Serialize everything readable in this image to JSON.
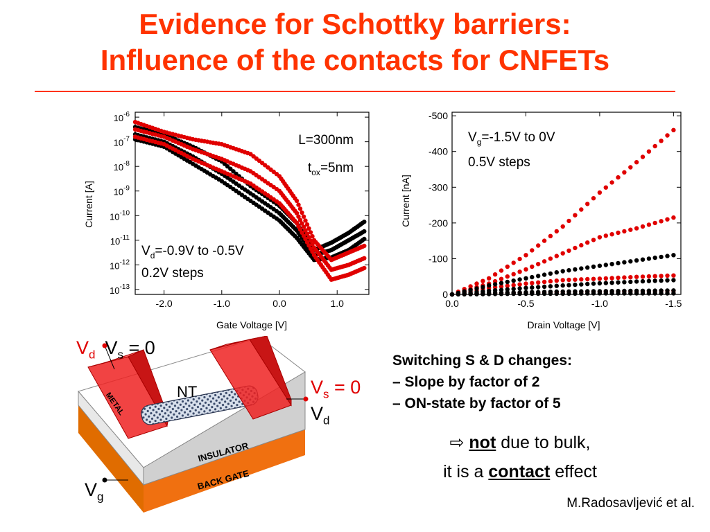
{
  "title": {
    "line1": "Evidence for Schottky barriers:",
    "line2": "Influence of the contacts for CNFETs"
  },
  "chart_data": [
    {
      "type": "scatter",
      "xlabel": "Gate Voltage [V]",
      "ylabel": "Current [A]",
      "xlim": [
        -2.5,
        1.55
      ],
      "ylim_log10": [
        -13.2,
        -5.8
      ],
      "yscale": "log",
      "xticks": [
        "-2.0",
        "-1.0",
        "0.0",
        "1.0"
      ],
      "ytick_exponents": [
        "-6",
        "-7",
        "-8",
        "-9",
        "-10",
        "-11",
        "-12",
        "-13"
      ],
      "annotations": {
        "length": "L=300nm",
        "tox_prefix": "t",
        "tox_sub": "ox",
        "tox_suffix": "=5nm",
        "vd_prefix": "V",
        "vd_sub": "d",
        "vd_suffix": "=-0.9V to -0.5V",
        "steps": "0.2V steps"
      },
      "series": [
        {
          "color": "#000000",
          "x": [
            -2.5,
            -2.0,
            -1.5,
            -1.0,
            -0.5,
            0.0,
            0.3,
            0.6,
            0.9,
            1.2,
            1.5
          ],
          "log10y": [
            -6.4,
            -6.7,
            -7.2,
            -7.8,
            -8.8,
            -9.6,
            -10.3,
            -11.4,
            -11.1,
            -10.7,
            -10.2
          ]
        },
        {
          "color": "#000000",
          "x": [
            -2.5,
            -2.0,
            -1.5,
            -1.0,
            -0.5,
            0.0,
            0.3,
            0.6,
            0.9,
            1.2,
            1.5
          ],
          "log10y": [
            -6.7,
            -7.0,
            -7.6,
            -8.3,
            -9.1,
            -9.9,
            -10.6,
            -11.6,
            -11.4,
            -11.0,
            -10.6
          ]
        },
        {
          "color": "#000000",
          "x": [
            -2.5,
            -2.0,
            -1.5,
            -1.0,
            -0.5,
            0.0,
            0.3,
            0.6,
            0.9,
            1.2,
            1.5
          ],
          "log10y": [
            -6.9,
            -7.2,
            -7.9,
            -8.6,
            -9.4,
            -10.2,
            -10.9,
            -11.8,
            -11.7,
            -11.4,
            -10.9
          ]
        },
        {
          "color": "#e00000",
          "x": [
            -2.5,
            -2.0,
            -1.5,
            -1.0,
            -0.5,
            0.0,
            0.3,
            0.6,
            0.9,
            1.2,
            1.5
          ],
          "log10y": [
            -6.2,
            -6.6,
            -6.9,
            -7.1,
            -7.5,
            -8.4,
            -9.4,
            -11.0,
            -11.8,
            -11.5,
            -11.2
          ]
        },
        {
          "color": "#e00000",
          "x": [
            -2.5,
            -2.0,
            -1.5,
            -1.0,
            -0.5,
            0.0,
            0.3,
            0.6,
            0.9,
            1.2,
            1.5
          ],
          "log10y": [
            -6.5,
            -6.8,
            -7.3,
            -7.7,
            -8.2,
            -9.0,
            -9.9,
            -11.3,
            -12.2,
            -12.0,
            -11.7
          ]
        },
        {
          "color": "#e00000",
          "x": [
            -2.5,
            -2.0,
            -1.5,
            -1.0,
            -0.5,
            0.0,
            0.3,
            0.6,
            0.9,
            1.2,
            1.5
          ],
          "log10y": [
            -6.8,
            -7.1,
            -7.7,
            -8.2,
            -8.7,
            -9.5,
            -10.3,
            -11.6,
            -12.6,
            -12.4,
            -12.1
          ]
        }
      ]
    },
    {
      "type": "scatter",
      "xlabel": "Drain Voltage [V]",
      "ylabel": "Current [nA]",
      "xlim": [
        0.0,
        -1.55
      ],
      "ylim": [
        0,
        -510
      ],
      "xticks": [
        "0.0",
        "-0.5",
        "-1.0",
        "-1.5"
      ],
      "yticks": [
        "-500",
        "-400",
        "-300",
        "-200",
        "-100",
        "0"
      ],
      "annotations": {
        "vg_prefix": "V",
        "vg_sub": "g",
        "vg_suffix": "=-1.5V to 0V",
        "steps": "0.5V steps"
      },
      "series": [
        {
          "color": "#e00000",
          "x": [
            0,
            -0.25,
            -0.5,
            -0.75,
            -1.0,
            -1.25,
            -1.5
          ],
          "y": [
            0,
            -45,
            -110,
            -190,
            -285,
            -370,
            -460
          ]
        },
        {
          "color": "#e00000",
          "x": [
            0,
            -0.25,
            -0.5,
            -0.75,
            -1.0,
            -1.25,
            -1.5
          ],
          "y": [
            0,
            -30,
            -70,
            -115,
            -160,
            -185,
            -215
          ]
        },
        {
          "color": "#e00000",
          "x": [
            0,
            -0.25,
            -0.5,
            -0.75,
            -1.0,
            -1.25,
            -1.5
          ],
          "y": [
            0,
            -18,
            -30,
            -40,
            -44,
            -49,
            -53
          ]
        },
        {
          "color": "#e00000",
          "x": [
            0,
            -0.25,
            -0.5,
            -0.75,
            -1.0,
            -1.25,
            -1.5
          ],
          "y": [
            0,
            -3,
            -5,
            -7,
            -8,
            -9,
            -10
          ]
        },
        {
          "color": "#000000",
          "x": [
            0,
            -0.25,
            -0.5,
            -0.75,
            -1.0,
            -1.25,
            -1.5
          ],
          "y": [
            0,
            -25,
            -45,
            -65,
            -80,
            -95,
            -110
          ]
        },
        {
          "color": "#000000",
          "x": [
            0,
            -0.25,
            -0.5,
            -0.75,
            -1.0,
            -1.25,
            -1.5
          ],
          "y": [
            0,
            -10,
            -18,
            -25,
            -31,
            -36,
            -40
          ]
        },
        {
          "color": "#000000",
          "x": [
            0,
            -0.25,
            -0.5,
            -0.75,
            -1.0,
            -1.25,
            -1.5
          ],
          "y": [
            0,
            -4,
            -6,
            -8,
            -9,
            -10,
            -11
          ]
        },
        {
          "color": "#000000",
          "x": [
            0,
            -0.25,
            -0.5,
            -0.75,
            -1.0,
            -1.25,
            -1.5
          ],
          "y": [
            0,
            -1,
            -2,
            -2,
            -3,
            -3,
            -3
          ]
        }
      ]
    }
  ],
  "device": {
    "vd_top": "V",
    "vd_top_sub": "d",
    "vs_top_prefix": "V",
    "vs_top_sub": "s",
    "vs_top_suffix": " = 0",
    "vs_right_prefix": "V",
    "vs_right_sub": "s",
    "vs_right_suffix": " = 0",
    "vd_right": "V",
    "vd_right_sub": "d",
    "vg": "V",
    "vg_sub": "g",
    "nt_label": "NT",
    "metal_label": "METAL",
    "insulator_label": "INSULATOR",
    "back_gate_label": "BACK GATE"
  },
  "text": {
    "heading": "Switching S & D changes:",
    "bullet1": "– Slope by factor of 2",
    "bullet2": "– ON-state by factor of 5",
    "arrow": "⇨",
    "not": "not",
    "bulk_suffix": " due to bulk,",
    "line2_prefix": "it is a ",
    "contact": "contact",
    "line2_suffix": " effect",
    "credit": "M.Radosavljević et al."
  },
  "colors": {
    "accent": "#ff3300",
    "red": "#e00000",
    "orange": "#f07010"
  }
}
